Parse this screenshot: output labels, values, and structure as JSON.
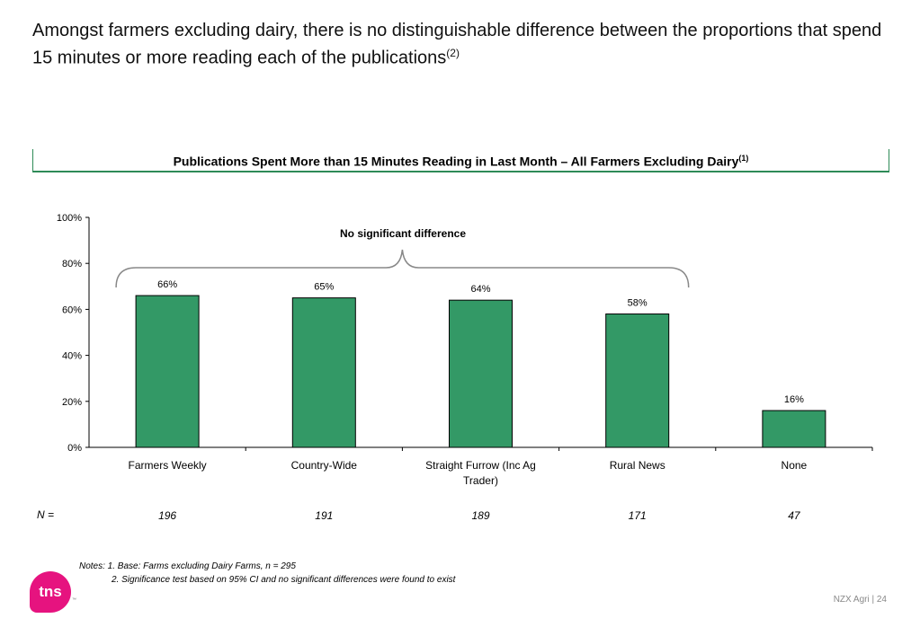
{
  "headline": {
    "text": "Amongst farmers excluding dairy, there is no distinguishable difference between the proportions that spend 15 minutes or more reading each of the publications",
    "sup": "(2)"
  },
  "chart_title": {
    "text": "Publications Spent More than 15 Minutes Reading in Last Month – All Farmers Excluding Dairy",
    "sup": "(1)"
  },
  "chart_data": {
    "type": "bar",
    "categories": [
      "Farmers Weekly",
      "Country-Wide",
      "Straight Furrow (Inc Ag Trader)",
      "Rural News",
      "None"
    ],
    "values": [
      66,
      65,
      64,
      58,
      16
    ],
    "data_labels": [
      "66%",
      "65%",
      "64%",
      "58%",
      "16%"
    ],
    "ylim": [
      0,
      100
    ],
    "yticks": [
      0,
      20,
      40,
      60,
      80,
      100
    ],
    "ytick_labels": [
      "0%",
      "20%",
      "40%",
      "60%",
      "80%",
      "100%"
    ],
    "annotation": "No significant difference",
    "bar_color": "#339966",
    "grid": false
  },
  "sample_sizes": {
    "label": "N =",
    "values": [
      "196",
      "191",
      "189",
      "171",
      "47"
    ]
  },
  "notes": {
    "line1": "Notes: 1. Base: Farms excluding Dairy Farms, n = 295",
    "line2": "2. Significance test based on 95% CI and no significant differences were found to exist"
  },
  "logo": {
    "text": "tns",
    "tm": "™",
    "color": "#e6137f"
  },
  "footer": {
    "text": "NZX Agri  |  24"
  }
}
